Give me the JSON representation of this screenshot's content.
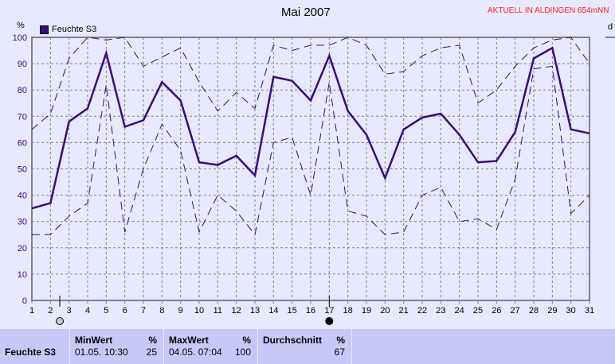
{
  "chart_data": {
    "type": "line",
    "title": "Mai 2007",
    "ylabel": "%",
    "ylim": [
      0,
      100
    ],
    "yticks": [
      0,
      10,
      20,
      30,
      40,
      50,
      60,
      70,
      80,
      90,
      100
    ],
    "x": [
      1,
      2,
      3,
      4,
      5,
      6,
      7,
      8,
      9,
      10,
      11,
      12,
      13,
      14,
      15,
      16,
      17,
      18,
      19,
      20,
      21,
      22,
      23,
      24,
      25,
      26,
      27,
      28,
      29,
      30,
      31
    ],
    "grid": true,
    "legend": "top-left",
    "series": [
      {
        "name": "Feuchte S3",
        "style": "solid",
        "values": [
          35,
          37,
          68,
          73,
          94,
          66,
          68.5,
          83,
          76,
          52.5,
          51.5,
          55,
          47.5,
          85,
          83.5,
          76,
          93,
          72,
          63,
          46.5,
          65,
          69.5,
          71,
          63,
          52.5,
          53,
          64,
          92,
          96,
          65,
          63.5
        ]
      },
      {
        "style": "dashed",
        "values": [
          65,
          71,
          92,
          100,
          99,
          100,
          89,
          92.5,
          96,
          83,
          72,
          79,
          73,
          97,
          95,
          97,
          97,
          100,
          97,
          86,
          87,
          93,
          96,
          97,
          75,
          80,
          89,
          96,
          99,
          100,
          90
        ]
      },
      {
        "style": "dashed",
        "values": [
          25,
          25,
          32,
          37,
          82,
          26,
          50,
          67,
          57,
          26,
          40,
          34,
          25,
          60,
          62,
          40,
          83,
          34,
          32,
          25,
          26,
          40,
          43,
          30,
          31,
          27,
          46,
          88,
          89,
          33,
          40
        ]
      }
    ],
    "colors": {
      "line": "#3c0a7a",
      "grid": "#808080",
      "axis": "#808080"
    },
    "moon_markers": [
      {
        "day": 2.5,
        "icon": "new-moon-icon"
      },
      {
        "day": 17,
        "icon": "full-moon-icon"
      }
    ]
  },
  "header": {
    "aktuell": "AKTUELL IN ALDINGEN 654mNN",
    "right_axis_label": "d"
  },
  "table": {
    "row_label": "Feuchte S3",
    "min": {
      "label": "MinWert",
      "unit": "%",
      "time": "01.05.  10:30",
      "value": "25"
    },
    "max": {
      "label": "MaxWert",
      "unit": "%",
      "time": "04.05.  07:04",
      "value": "100"
    },
    "avg": {
      "label": "Durchschnitt",
      "unit": "%",
      "value": "67"
    }
  }
}
